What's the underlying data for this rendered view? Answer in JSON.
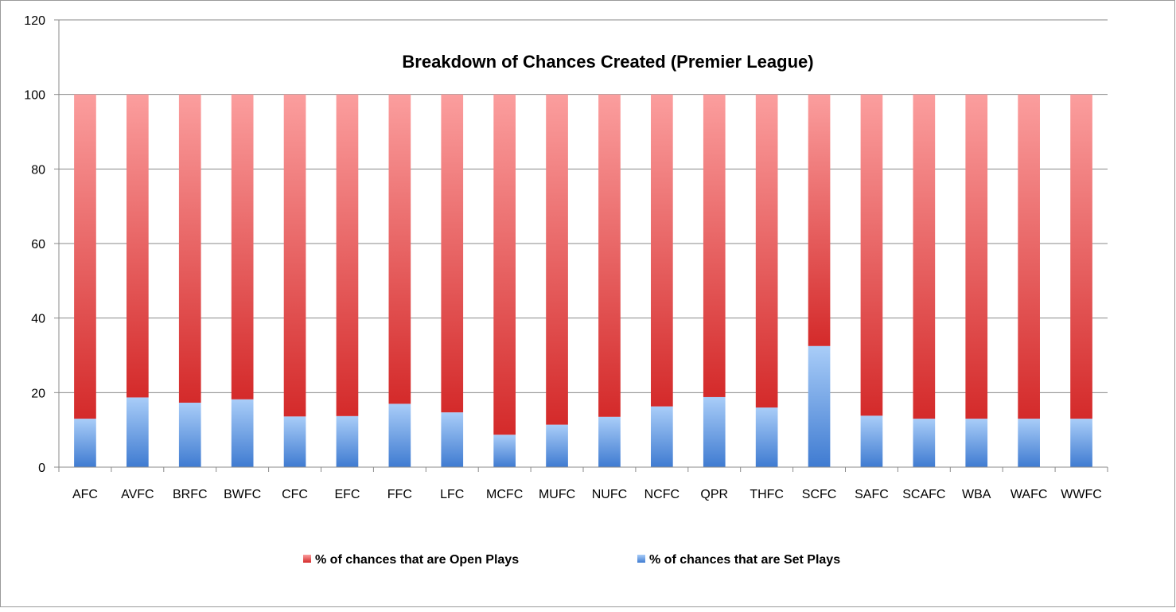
{
  "chart_data": {
    "type": "bar",
    "stacked": true,
    "title": "Breakdown of Chances Created (Premier League)",
    "xlabel": "",
    "ylabel": "",
    "ylim": [
      0,
      120
    ],
    "yticks": [
      0,
      20,
      40,
      60,
      80,
      100,
      120
    ],
    "grid": true,
    "legend_position": "bottom",
    "categories": [
      "AFC",
      "AVFC",
      "BRFC",
      "BWFC",
      "CFC",
      "EFC",
      "FFC",
      "LFC",
      "MCFC",
      "MUFC",
      "NUFC",
      "NCFC",
      "QPR",
      "THFC",
      "SCFC",
      "SAFC",
      "SCAFC",
      "WBA",
      "WAFC",
      "WWFC"
    ],
    "series": [
      {
        "name": "% of chances that are Set Plays",
        "color": "#5b93dd",
        "values": [
          13,
          18.7,
          17.3,
          18.2,
          13.6,
          13.7,
          17,
          14.7,
          8.7,
          11.4,
          13.5,
          16.3,
          18.8,
          16,
          32.5,
          13.8,
          13,
          13,
          13,
          13
        ]
      },
      {
        "name": "% of chances that are Open Plays",
        "color": "#e05252",
        "values": [
          87,
          81.3,
          82.7,
          81.8,
          86.4,
          86.3,
          83,
          85.3,
          91.3,
          88.6,
          86.5,
          83.7,
          81.2,
          84,
          67.5,
          86.2,
          87,
          87,
          87,
          87
        ]
      }
    ]
  }
}
